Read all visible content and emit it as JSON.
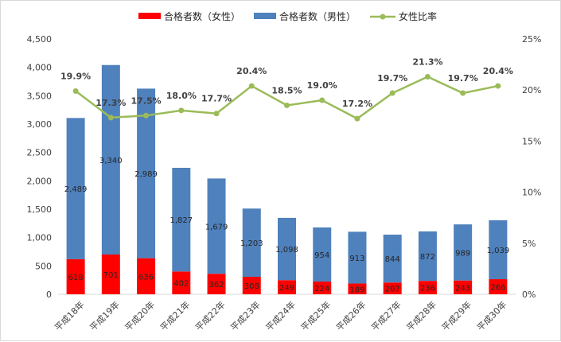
{
  "chart_data": {
    "type": "bar",
    "stacked": true,
    "categories": [
      "平成18年",
      "平成19年",
      "平成20年",
      "平成21年",
      "平成22年",
      "平成23年",
      "平成24年",
      "平成25年",
      "平成26年",
      "平成27年",
      "平成28年",
      "平成29年",
      "平成30年"
    ],
    "series": [
      {
        "name": "合格者数（女性）",
        "type": "bar",
        "color": "#ff0000",
        "axis": "left",
        "values": [
          618,
          701,
          636,
          402,
          362,
          308,
          249,
          224,
          189,
          207,
          236,
          243,
          266
        ],
        "labels": [
          "618",
          "701",
          "636",
          "402",
          "362",
          "308",
          "249",
          "224",
          "189",
          "207",
          "236",
          "243",
          "266"
        ]
      },
      {
        "name": "合格者数（男性）",
        "type": "bar",
        "color": "#4f81bd",
        "axis": "left",
        "values": [
          2489,
          3340,
          2989,
          1827,
          1679,
          1203,
          1098,
          954,
          913,
          844,
          872,
          989,
          1039
        ],
        "labels": [
          "2,489",
          "3,340",
          "2,989",
          "1,827",
          "1,679",
          "1,203",
          "1,098",
          "954",
          "913",
          "844",
          "872",
          "989",
          "1,039"
        ]
      },
      {
        "name": "女性比率",
        "type": "line",
        "color": "#9bbb59",
        "axis": "right",
        "values": [
          19.9,
          17.3,
          17.5,
          18.0,
          17.7,
          20.4,
          18.5,
          19.0,
          17.2,
          19.7,
          21.3,
          19.7,
          20.4
        ],
        "labels": [
          "19.9%",
          "17.3%",
          "17.5%",
          "18.0%",
          "17.7%",
          "20.4%",
          "18.5%",
          "19.0%",
          "17.2%",
          "19.7%",
          "21.3%",
          "19.7%",
          "20.4%"
        ]
      }
    ],
    "ylim": [
      0,
      4500
    ],
    "yticks": [
      "0",
      "500",
      "1,000",
      "1,500",
      "2,000",
      "2,500",
      "3,000",
      "3,500",
      "4,000",
      "4,500"
    ],
    "y2lim": [
      0,
      25
    ],
    "y2ticks": [
      "0%",
      "5%",
      "10%",
      "15%",
      "20%",
      "25%"
    ],
    "legend_position": "top",
    "grid": false
  }
}
